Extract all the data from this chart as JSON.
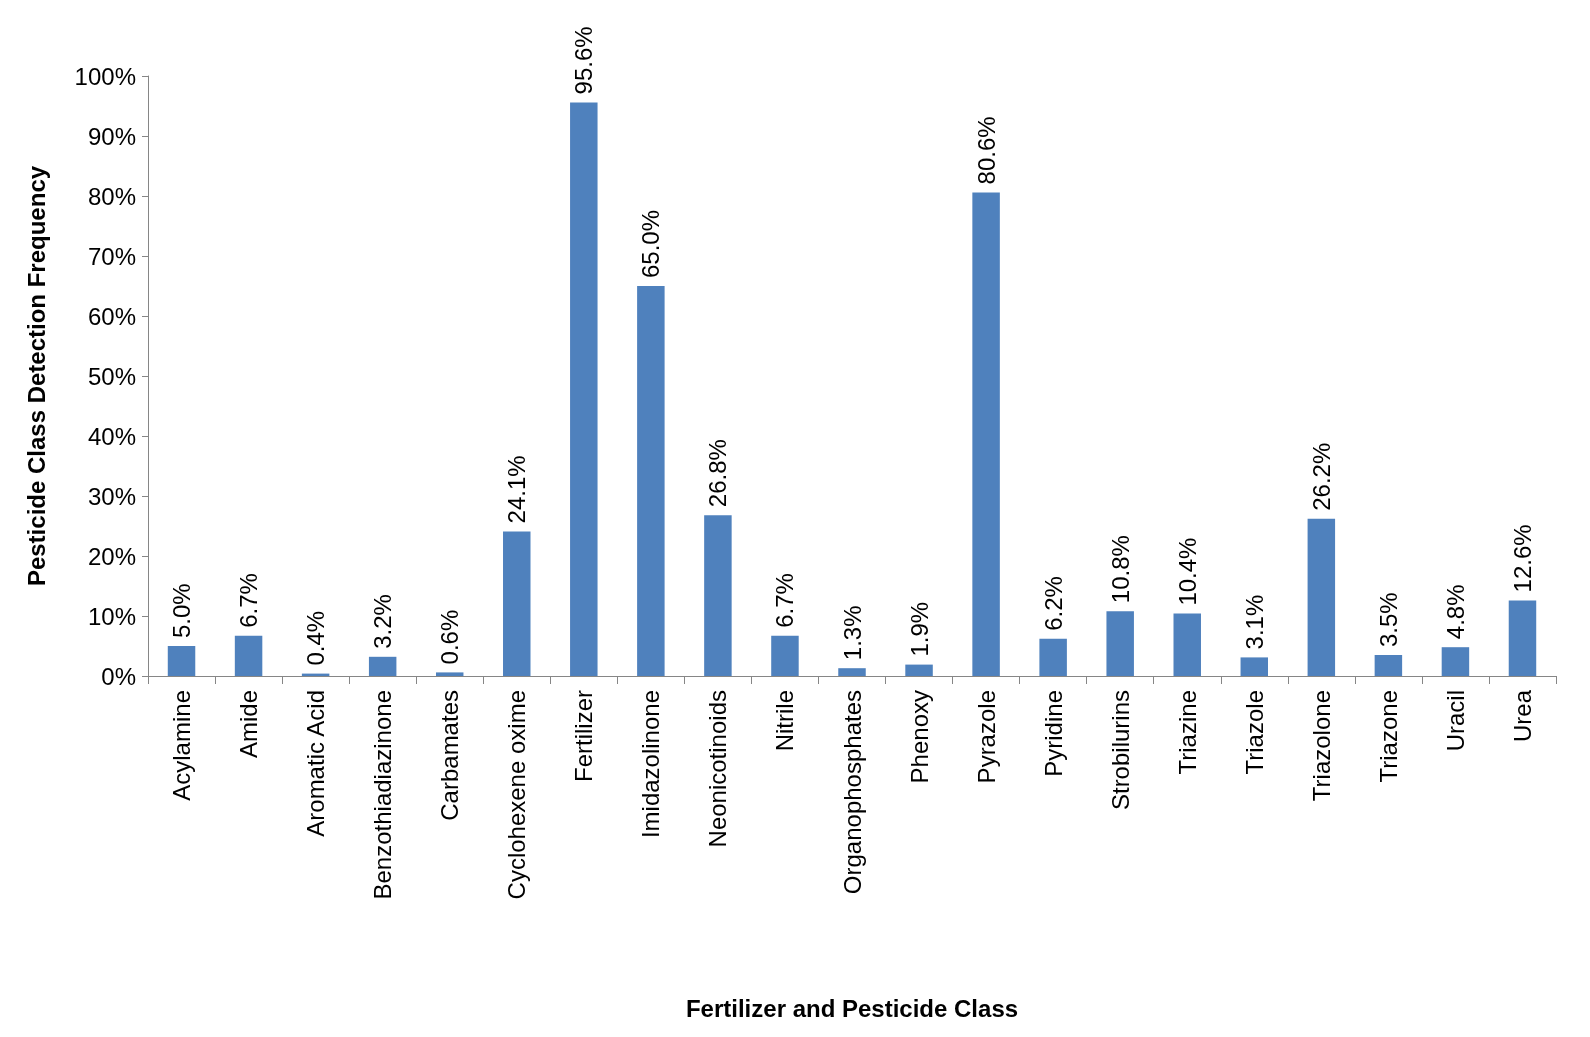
{
  "chart_data": {
    "type": "bar",
    "xlabel": "Fertilizer and Pesticide Class",
    "ylabel": "Pesticide Class Detection Frequency",
    "categories": [
      "Acylamine",
      "Amide",
      "Aromatic Acid",
      "Benzothiadiazinone",
      "Carbamates",
      "Cyclohexene oxime",
      "Fertilizer",
      "Imidazolinone",
      "Neonicotinoids",
      "Nitrile",
      "Organophosphates",
      "Phenoxy",
      "Pyrazole",
      "Pyridine",
      "Strobilurins",
      "Triazine",
      "Triazole",
      "Triazolone",
      "Triazone",
      "Uracil",
      "Urea"
    ],
    "values": [
      5.0,
      6.7,
      0.4,
      3.2,
      0.6,
      24.1,
      95.6,
      65.0,
      26.8,
      6.7,
      1.3,
      1.9,
      80.6,
      6.2,
      10.8,
      10.4,
      3.1,
      26.2,
      3.5,
      4.8,
      12.6
    ],
    "value_labels": [
      "5.0%",
      "6.7%",
      "0.4%",
      "3.2%",
      "0.6%",
      "24.1%",
      "95.6%",
      "65.0%",
      "26.8%",
      "6.7%",
      "1.3%",
      "1.9%",
      "80.6%",
      "6.2%",
      "10.8%",
      "10.4%",
      "3.1%",
      "26.2%",
      "3.5%",
      "4.8%",
      "12.6%"
    ],
    "color": "#4f81bd",
    "ylim": [
      0,
      100
    ],
    "yticks": [
      {
        "value": 0,
        "label": "0%"
      },
      {
        "value": 10,
        "label": "10%"
      },
      {
        "value": 20,
        "label": "20%"
      },
      {
        "value": 30,
        "label": "30%"
      },
      {
        "value": 40,
        "label": "40%"
      },
      {
        "value": 50,
        "label": "50%"
      },
      {
        "value": 60,
        "label": "60%"
      },
      {
        "value": 70,
        "label": "70%"
      },
      {
        "value": 80,
        "label": "80%"
      },
      {
        "value": 90,
        "label": "90%"
      },
      {
        "value": 100,
        "label": "100%"
      }
    ],
    "grid": false
  }
}
